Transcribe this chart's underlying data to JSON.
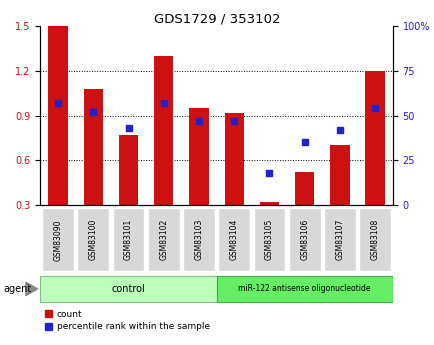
{
  "title": "GDS1729 / 353102",
  "categories": [
    "GSM83090",
    "GSM83100",
    "GSM83101",
    "GSM83102",
    "GSM83103",
    "GSM83104",
    "GSM83105",
    "GSM83106",
    "GSM83107",
    "GSM83108"
  ],
  "count_values": [
    1.5,
    1.08,
    0.77,
    1.3,
    0.95,
    0.92,
    0.32,
    0.52,
    0.7,
    1.2
  ],
  "percentile_values": [
    57,
    52,
    43,
    57,
    47,
    47,
    18,
    35,
    42,
    54
  ],
  "ylim_left": [
    0.3,
    1.5
  ],
  "ylim_right": [
    0,
    100
  ],
  "yticks_left": [
    0.3,
    0.6,
    0.9,
    1.2,
    1.5
  ],
  "yticks_right": [
    0,
    25,
    50,
    75,
    100
  ],
  "ytick_labels_right": [
    "0",
    "25",
    "50",
    "75",
    "100%"
  ],
  "bar_color": "#cc1111",
  "dot_color": "#2222cc",
  "bar_bottom": 0.3,
  "control_label": "control",
  "treatment_label": "miR-122 antisense oligonucleotide",
  "agent_label": "agent",
  "legend_count_label": "count",
  "legend_percentile_label": "percentile rank within the sample",
  "control_color": "#bbffbb",
  "treatment_color": "#66ee66",
  "xtick_bg": "#d8d8d8"
}
